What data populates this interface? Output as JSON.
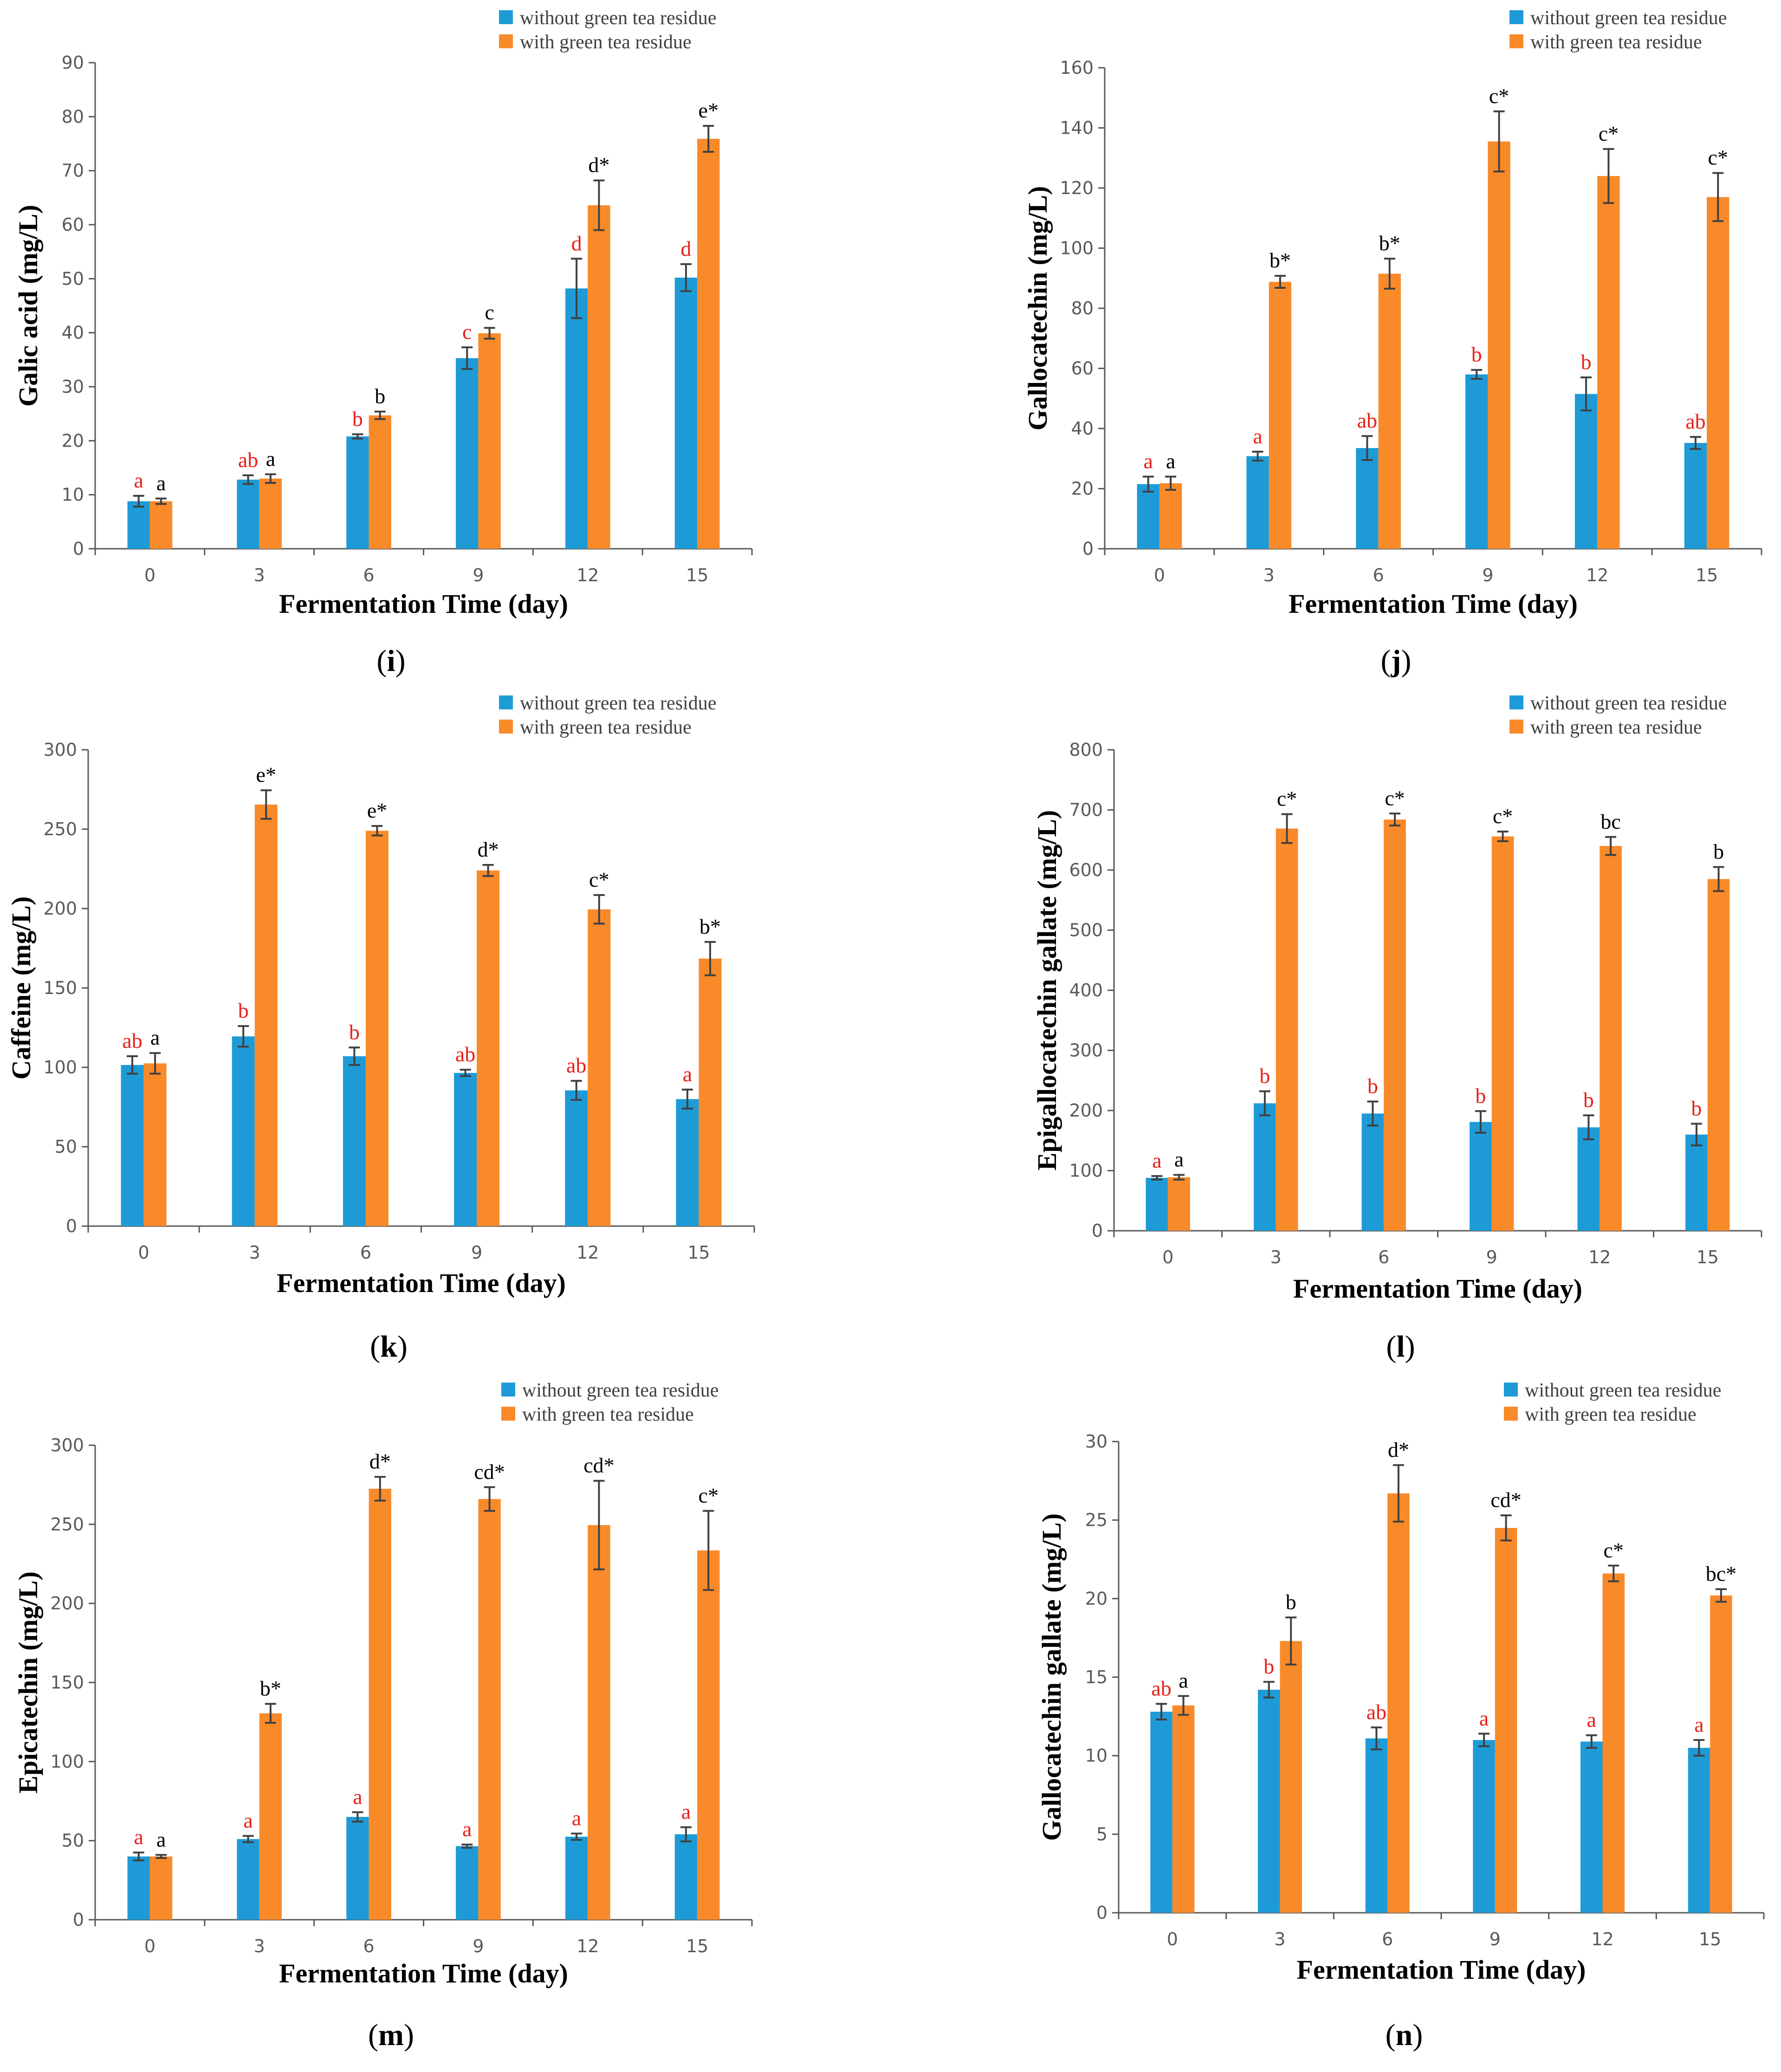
{
  "colors": {
    "series_without": "#1E9BD7",
    "series_with": "#F98A2A",
    "letters_without": "#E8201B",
    "letters_with": "#000000",
    "axis": "#595959"
  },
  "chart_data": [
    {
      "panel": "(i)",
      "panel_letter": "i",
      "type": "bar",
      "title": "",
      "xlabel": "Fermentation Time (day)",
      "ylabel": "Galic acid (mg/L)",
      "ylim": [
        0,
        90
      ],
      "yticks": [
        "0",
        "10",
        "20",
        "30",
        "40",
        "50",
        "60",
        "70",
        "80",
        "90"
      ],
      "categories": [
        "0",
        "3",
        "6",
        "9",
        "12",
        "15"
      ],
      "series": [
        {
          "name": "without green tea residue",
          "values": [
            8.8,
            12.8,
            20.8,
            35.3,
            48.2,
            50.2
          ],
          "errors": [
            1.0,
            0.8,
            0.4,
            2.0,
            5.5,
            2.5
          ],
          "labels": [
            "a",
            "ab",
            "b",
            "c",
            "d",
            "d"
          ]
        },
        {
          "name": "with green tea residue",
          "values": [
            8.8,
            13.0,
            24.7,
            39.9,
            63.6,
            75.9
          ],
          "errors": [
            0.5,
            0.8,
            0.7,
            1.0,
            4.6,
            2.4
          ],
          "labels": [
            "a",
            "a",
            "b",
            "c",
            "d*",
            "e*"
          ]
        }
      ]
    },
    {
      "panel": "(j)",
      "panel_letter": "j",
      "type": "bar",
      "title": "",
      "xlabel": "Fermentation Time (day)",
      "ylabel": "Gallocatechin (mg/L)",
      "ylim": [
        0,
        160
      ],
      "yticks": [
        "0",
        "20",
        "40",
        "60",
        "80",
        "100",
        "120",
        "140",
        "160"
      ],
      "categories": [
        "0",
        "3",
        "6",
        "9",
        "12",
        "15"
      ],
      "series": [
        {
          "name": "without green tea residue",
          "values": [
            21.5,
            30.8,
            33.5,
            58.0,
            51.5,
            35.2
          ],
          "errors": [
            2.5,
            1.5,
            4.0,
            1.5,
            5.5,
            2.0
          ],
          "labels": [
            "a",
            "a",
            "ab",
            "b",
            "b",
            "ab"
          ]
        },
        {
          "name": "with green tea residue",
          "values": [
            21.8,
            88.8,
            91.5,
            135.5,
            124.0,
            117.0
          ],
          "errors": [
            2.2,
            2.0,
            5.0,
            10.0,
            9.0,
            8.0
          ],
          "labels": [
            "a",
            "b*",
            "b*",
            "c*",
            "c*",
            "c*"
          ]
        }
      ]
    },
    {
      "panel": "(k)",
      "panel_letter": "k",
      "type": "bar",
      "title": "",
      "xlabel": "Fermentation Time (day)",
      "ylabel": "Caffeine (mg/L)",
      "ylim": [
        0,
        300
      ],
      "yticks": [
        "0",
        "50",
        "100",
        "150",
        "200",
        "250",
        "300"
      ],
      "categories": [
        "0",
        "3",
        "6",
        "9",
        "12",
        "15"
      ],
      "series": [
        {
          "name": "without green tea residue",
          "values": [
            101.5,
            119.5,
            107.0,
            96.5,
            85.5,
            80.0
          ],
          "errors": [
            5.5,
            6.5,
            5.5,
            2.0,
            6.0,
            6.0
          ],
          "labels": [
            "ab",
            "b",
            "b",
            "ab",
            "ab",
            "a"
          ]
        },
        {
          "name": "with green tea residue",
          "values": [
            102.5,
            265.5,
            249.0,
            224.0,
            199.5,
            168.5
          ],
          "errors": [
            6.5,
            9.0,
            3.0,
            3.5,
            9.0,
            10.5
          ],
          "labels": [
            "a",
            "e*",
            "e*",
            "d*",
            "c*",
            "b*"
          ]
        }
      ]
    },
    {
      "panel": "(l)",
      "panel_letter": "l",
      "type": "bar",
      "title": "",
      "xlabel": "Fermentation Time (day)",
      "ylabel": "Epigallocatechin gallate (mg/L)",
      "ylim": [
        0,
        800
      ],
      "yticks": [
        "0",
        "100",
        "200",
        "300",
        "400",
        "500",
        "600",
        "700",
        "800"
      ],
      "categories": [
        "0",
        "3",
        "6",
        "9",
        "12",
        "15"
      ],
      "series": [
        {
          "name": "without green tea residue",
          "values": [
            88.0,
            212.0,
            195.0,
            181.0,
            172.0,
            160.0
          ],
          "errors": [
            3.0,
            20.0,
            20.0,
            18.0,
            20.0,
            18.0
          ],
          "labels": [
            "a",
            "b",
            "b",
            "b",
            "b",
            "b"
          ]
        },
        {
          "name": "with green tea residue",
          "values": [
            89.0,
            669.0,
            684.0,
            656.0,
            640.0,
            585.0
          ],
          "errors": [
            4.0,
            24.0,
            10.0,
            8.0,
            15.0,
            20.0
          ],
          "labels": [
            "a",
            "c*",
            "c*",
            "c*",
            "bc",
            "b"
          ]
        }
      ]
    },
    {
      "panel": "(m)",
      "panel_letter": "m",
      "type": "bar",
      "title": "",
      "xlabel": "Fermentation Time (day)",
      "ylabel": "Epicatechin (mg/L)",
      "ylim": [
        0,
        300
      ],
      "yticks": [
        "0",
        "50",
        "100",
        "150",
        "200",
        "250",
        "300"
      ],
      "categories": [
        "0",
        "3",
        "6",
        "9",
        "12",
        "15"
      ],
      "series": [
        {
          "name": "without green tea residue",
          "values": [
            40.0,
            51.0,
            65.0,
            46.5,
            52.5,
            54.0
          ],
          "errors": [
            2.5,
            2.0,
            3.0,
            1.0,
            2.0,
            4.5
          ],
          "labels": [
            "a",
            "a",
            "a",
            "a",
            "a",
            "a"
          ]
        },
        {
          "name": "with green tea residue",
          "values": [
            40.0,
            130.5,
            272.5,
            266.0,
            249.5,
            233.5
          ],
          "errors": [
            1.0,
            6.0,
            7.5,
            7.5,
            28.0,
            25.0
          ],
          "labels": [
            "a",
            "b*",
            "d*",
            "cd*",
            "cd*",
            "c*"
          ]
        }
      ]
    },
    {
      "panel": "(n)",
      "panel_letter": "n",
      "type": "bar",
      "title": "",
      "xlabel": "Fermentation Time (day)",
      "ylabel": "Gallocatechin gallate (mg/L)",
      "ylim": [
        0,
        30
      ],
      "yticks": [
        "0",
        "5",
        "10",
        "15",
        "20",
        "25",
        "30"
      ],
      "categories": [
        "0",
        "3",
        "6",
        "9",
        "12",
        "15"
      ],
      "series": [
        {
          "name": "without green tea residue",
          "values": [
            12.8,
            14.2,
            11.1,
            11.0,
            10.9,
            10.5
          ],
          "errors": [
            0.5,
            0.5,
            0.7,
            0.4,
            0.4,
            0.5
          ],
          "labels": [
            "ab",
            "b",
            "ab",
            "a",
            "a",
            "a"
          ]
        },
        {
          "name": "with green tea residue",
          "values": [
            13.2,
            17.3,
            26.7,
            24.5,
            21.6,
            20.2
          ],
          "errors": [
            0.6,
            1.5,
            1.8,
            0.8,
            0.5,
            0.4
          ],
          "labels": [
            "a",
            "b",
            "d*",
            "cd*",
            "c*",
            "bc*"
          ]
        }
      ]
    }
  ]
}
